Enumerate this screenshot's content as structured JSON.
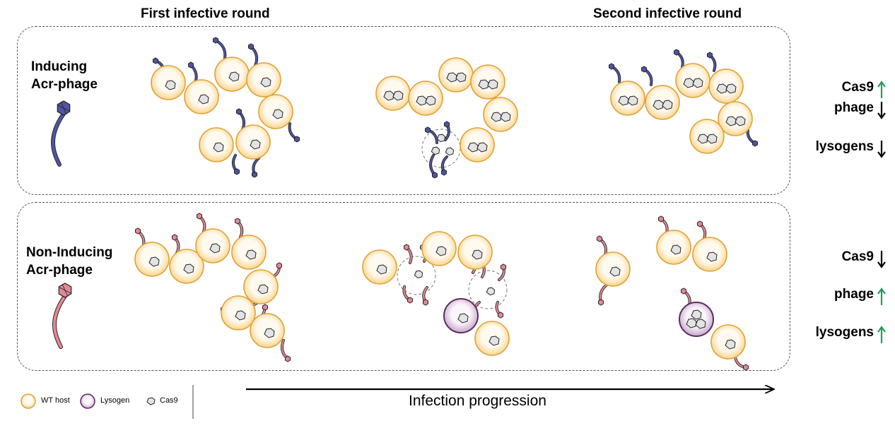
{
  "headers": {
    "first_round": "First infective round",
    "second_round": "Second infective round"
  },
  "panels": {
    "top": {
      "phage_label_line1": "Inducing",
      "phage_label_line2": "Acr-phage",
      "phage_color": "#4f55a0",
      "outcomes": [
        {
          "label": "Cas9",
          "direction": "up",
          "color": "#21a05a"
        },
        {
          "label": "phage",
          "direction": "down",
          "color": "#000000"
        },
        {
          "label": "lysogens",
          "direction": "down",
          "color": "#000000"
        }
      ]
    },
    "bottom": {
      "phage_label_line1": "Non-Inducing",
      "phage_label_line2": "Acr-phage",
      "phage_color": "#e28993",
      "outcomes": [
        {
          "label": "Cas9",
          "direction": "down",
          "color": "#000000"
        },
        {
          "label": "phage",
          "direction": "up",
          "color": "#21a05a"
        },
        {
          "label": "lysogens",
          "direction": "up",
          "color": "#21a05a"
        }
      ]
    }
  },
  "legend": {
    "wt_host": "WT host",
    "lysogen": "Lysogen",
    "cas9": "Cas9"
  },
  "progression_label": "Infection progression",
  "colors": {
    "wt_host_fill": "#fbe1ad",
    "wt_host_stroke": "#e0a136",
    "lysogen_fill": "#efe1f2",
    "lysogen_stroke": "#5a2e5f",
    "cas9_fill": "#e3e3e3",
    "up_arrow": "#21a05a",
    "down_arrow": "#000000"
  }
}
